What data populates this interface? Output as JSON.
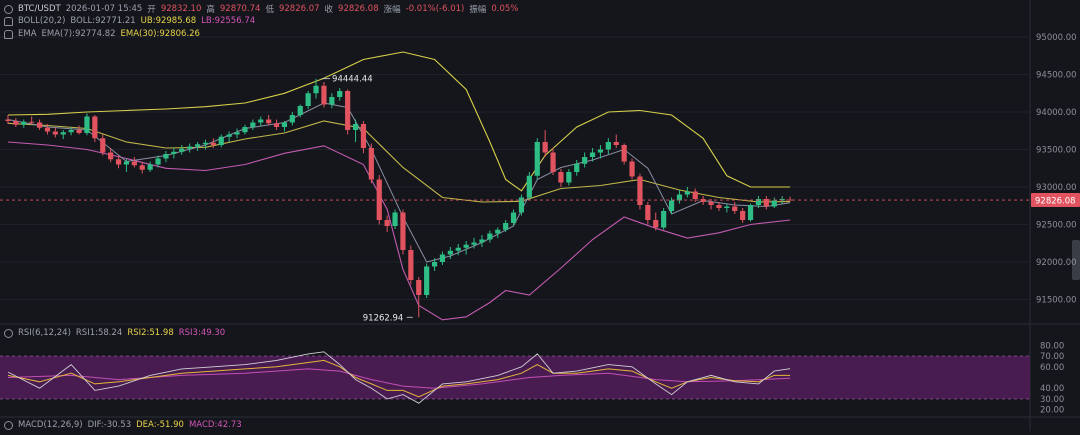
{
  "header": {
    "symbol": "BTC/USDT",
    "datetime": "2026-01-07 15:45",
    "open_label": "开",
    "open_value": "92832.10",
    "high_label": "高",
    "high_value": "92870.74",
    "low_label": "低",
    "low_value": "92826.07",
    "close_label": "收",
    "close_value": "92826.08",
    "change_label": "涨幅",
    "change_value": "-0.01%(-6.01)",
    "amplitude_label": "振幅",
    "amplitude_value": "0.05%"
  },
  "boll_legend": {
    "name": "BOLL(20,2)",
    "mid": "BOLL:92771.21",
    "ub": "UB:92985.68",
    "lb": "LB:92556.74"
  },
  "ema_legend": {
    "name": "EMA",
    "ema7": "EMA(7):92774.82",
    "ema30": "EMA(30):92806.26"
  },
  "rsi_legend": {
    "name": "RSI(6,12,24)",
    "rsi1": "RSI1:58.24",
    "rsi2": "RSI2:51.98",
    "rsi3": "RSI3:49.30"
  },
  "macd_legend": {
    "name": "MACD(12,26,9)",
    "dif": "DIF:-30.53",
    "dea": "DEA:-51.90",
    "macd": "MACD:42.73"
  },
  "annotations": {
    "high_label": "94444.44",
    "low_label": "91262.94"
  },
  "price_axis": {
    "ticks": [
      "95000.00",
      "94500.00",
      "94000.00",
      "93500.00",
      "93000.00",
      "92500.00",
      "92000.00",
      "91500.00"
    ],
    "current_price": "92826.08"
  },
  "rsi_axis": {
    "ticks": [
      "80.00",
      "70.00",
      "60.00",
      "40.00",
      "30.00",
      "20.00"
    ]
  },
  "colors": {
    "up": "#2ebd85",
    "down": "#e0535f",
    "ub": "#d6cf4a",
    "lb": "#c35bb0",
    "ema7": "#8a8fa3",
    "ema30": "#c2b84a",
    "rsi1": "#d0d0d6",
    "rsi2": "#e3b53a",
    "rsi3": "#c24fb5",
    "rsi_band": "#5b1f63"
  },
  "chart_data": {
    "type": "candlestick",
    "price_ylim": [
      91200,
      95200
    ],
    "rsi_ylim": [
      15,
      85
    ],
    "n_candles": 100,
    "high_point": {
      "index": 39,
      "value": 94444.44
    },
    "low_point": {
      "index": 52,
      "value": 91262.94
    },
    "candles": [
      [
        93900,
        93960,
        93840,
        93880
      ],
      [
        93880,
        93920,
        93800,
        93830
      ],
      [
        93830,
        93900,
        93790,
        93870
      ],
      [
        93870,
        93940,
        93830,
        93860
      ],
      [
        93860,
        93900,
        93760,
        93790
      ],
      [
        93790,
        93840,
        93700,
        93740
      ],
      [
        93740,
        93790,
        93660,
        93700
      ],
      [
        93700,
        93760,
        93640,
        93730
      ],
      [
        93730,
        93800,
        93690,
        93760
      ],
      [
        93760,
        93820,
        93700,
        93720
      ],
      [
        93720,
        93980,
        93690,
        93940
      ],
      [
        93940,
        93960,
        93600,
        93650
      ],
      [
        93650,
        93700,
        93420,
        93460
      ],
      [
        93460,
        93520,
        93330,
        93370
      ],
      [
        93370,
        93420,
        93250,
        93300
      ],
      [
        93300,
        93380,
        93200,
        93340
      ],
      [
        93340,
        93400,
        93260,
        93290
      ],
      [
        93290,
        93330,
        93180,
        93230
      ],
      [
        93230,
        93340,
        93200,
        93300
      ],
      [
        93300,
        93420,
        93260,
        93380
      ],
      [
        93380,
        93480,
        93330,
        93440
      ],
      [
        93440,
        93520,
        93380,
        93470
      ],
      [
        93470,
        93560,
        93430,
        93510
      ],
      [
        93510,
        93580,
        93460,
        93540
      ],
      [
        93540,
        93600,
        93480,
        93570
      ],
      [
        93570,
        93630,
        93500,
        93590
      ],
      [
        93590,
        93650,
        93520,
        93560
      ],
      [
        93560,
        93700,
        93530,
        93670
      ],
      [
        93670,
        93740,
        93600,
        93700
      ],
      [
        93700,
        93780,
        93650,
        93730
      ],
      [
        93730,
        93830,
        93700,
        93800
      ],
      [
        93800,
        93900,
        93760,
        93860
      ],
      [
        93860,
        93940,
        93810,
        93900
      ],
      [
        93900,
        93960,
        93820,
        93850
      ],
      [
        93850,
        93900,
        93760,
        93800
      ],
      [
        93800,
        93880,
        93740,
        93860
      ],
      [
        93860,
        94000,
        93820,
        93960
      ],
      [
        93960,
        94100,
        93930,
        94080
      ],
      [
        94080,
        94280,
        94040,
        94250
      ],
      [
        94250,
        94444,
        94180,
        94350
      ],
      [
        94350,
        94400,
        94060,
        94100
      ],
      [
        94100,
        94250,
        94050,
        94200
      ],
      [
        94200,
        94320,
        94150,
        94280
      ],
      [
        94280,
        94300,
        93700,
        93760
      ],
      [
        93760,
        93900,
        93600,
        93840
      ],
      [
        93840,
        93880,
        93450,
        93520
      ],
      [
        93520,
        93580,
        93050,
        93100
      ],
      [
        93100,
        93160,
        92500,
        92560
      ],
      [
        92560,
        92620,
        92400,
        92480
      ],
      [
        92480,
        92700,
        92440,
        92660
      ],
      [
        92660,
        92700,
        92100,
        92160
      ],
      [
        92160,
        92220,
        91700,
        91760
      ],
      [
        91760,
        91800,
        91262.94,
        91560
      ],
      [
        91560,
        91980,
        91520,
        91940
      ],
      [
        91940,
        92050,
        91880,
        92000
      ],
      [
        92000,
        92140,
        91960,
        92100
      ],
      [
        92100,
        92200,
        92040,
        92150
      ],
      [
        92150,
        92240,
        92090,
        92190
      ],
      [
        92190,
        92280,
        92100,
        92230
      ],
      [
        92230,
        92320,
        92180,
        92260
      ],
      [
        92260,
        92360,
        92200,
        92300
      ],
      [
        92300,
        92420,
        92260,
        92380
      ],
      [
        92380,
        92460,
        92320,
        92430
      ],
      [
        92430,
        92560,
        92400,
        92520
      ],
      [
        92520,
        92700,
        92480,
        92660
      ],
      [
        92660,
        92900,
        92620,
        92860
      ],
      [
        92860,
        93200,
        92820,
        93150
      ],
      [
        93150,
        93650,
        93100,
        93600
      ],
      [
        93600,
        93760,
        93400,
        93460
      ],
      [
        93460,
        93520,
        93160,
        93200
      ],
      [
        93200,
        93240,
        93000,
        93060
      ],
      [
        93060,
        93240,
        93020,
        93200
      ],
      [
        93200,
        93360,
        93150,
        93310
      ],
      [
        93310,
        93460,
        93260,
        93400
      ],
      [
        93400,
        93520,
        93340,
        93460
      ],
      [
        93460,
        93560,
        93380,
        93500
      ],
      [
        93500,
        93650,
        93440,
        93600
      ],
      [
        93600,
        93700,
        93520,
        93560
      ],
      [
        93560,
        93580,
        93300,
        93340
      ],
      [
        93340,
        93380,
        93100,
        93140
      ],
      [
        93140,
        93180,
        92700,
        92760
      ],
      [
        92760,
        92800,
        92500,
        92560
      ],
      [
        92560,
        92660,
        92420,
        92460
      ],
      [
        92460,
        92720,
        92430,
        92680
      ],
      [
        92680,
        92860,
        92640,
        92820
      ],
      [
        92820,
        92960,
        92780,
        92900
      ],
      [
        92900,
        93000,
        92860,
        92940
      ],
      [
        92940,
        92980,
        92800,
        92840
      ],
      [
        92840,
        92880,
        92760,
        92800
      ],
      [
        92800,
        92840,
        92700,
        92760
      ],
      [
        92760,
        92800,
        92680,
        92720
      ],
      [
        92720,
        92780,
        92660,
        92740
      ],
      [
        92740,
        92800,
        92640,
        92680
      ],
      [
        92680,
        92720,
        92520,
        92560
      ],
      [
        92560,
        92780,
        92540,
        92760
      ],
      [
        92760,
        92880,
        92720,
        92840
      ],
      [
        92840,
        92880,
        92700,
        92740
      ],
      [
        92740,
        92860,
        92720,
        92820
      ],
      [
        92820,
        92880,
        92780,
        92840
      ],
      [
        92832.1,
        92870.74,
        92826.07,
        92826.08
      ]
    ],
    "upper_band": [
      [
        0,
        93960
      ],
      [
        5,
        93970
      ],
      [
        10,
        94000
      ],
      [
        15,
        94020
      ],
      [
        20,
        94040
      ],
      [
        25,
        94070
      ],
      [
        30,
        94120
      ],
      [
        35,
        94250
      ],
      [
        40,
        94450
      ],
      [
        45,
        94700
      ],
      [
        50,
        94800
      ],
      [
        54,
        94700
      ],
      [
        58,
        94300
      ],
      [
        61,
        93600
      ],
      [
        63,
        93100
      ],
      [
        65,
        92950
      ],
      [
        68,
        93420
      ],
      [
        72,
        93800
      ],
      [
        76,
        94000
      ],
      [
        80,
        94020
      ],
      [
        84,
        93960
      ],
      [
        88,
        93650
      ],
      [
        91,
        93150
      ],
      [
        94,
        93000
      ],
      [
        99,
        93000
      ]
    ],
    "lower_band": [
      [
        0,
        93600
      ],
      [
        5,
        93560
      ],
      [
        10,
        93500
      ],
      [
        15,
        93380
      ],
      [
        20,
        93250
      ],
      [
        25,
        93220
      ],
      [
        30,
        93300
      ],
      [
        35,
        93450
      ],
      [
        40,
        93550
      ],
      [
        45,
        93300
      ],
      [
        48,
        92700
      ],
      [
        50,
        91900
      ],
      [
        52,
        91420
      ],
      [
        55,
        91230
      ],
      [
        58,
        91270
      ],
      [
        61,
        91460
      ],
      [
        63,
        91620
      ],
      [
        66,
        91560
      ],
      [
        70,
        91920
      ],
      [
        74,
        92300
      ],
      [
        78,
        92600
      ],
      [
        82,
        92450
      ],
      [
        86,
        92320
      ],
      [
        90,
        92390
      ],
      [
        94,
        92500
      ],
      [
        99,
        92560
      ]
    ],
    "ema7": [
      [
        0,
        93900
      ],
      [
        5,
        93800
      ],
      [
        10,
        93760
      ],
      [
        15,
        93340
      ],
      [
        20,
        93420
      ],
      [
        25,
        93560
      ],
      [
        30,
        93780
      ],
      [
        35,
        93860
      ],
      [
        40,
        94120
      ],
      [
        43,
        94060
      ],
      [
        46,
        93500
      ],
      [
        50,
        92600
      ],
      [
        53,
        92000
      ],
      [
        56,
        92080
      ],
      [
        60,
        92260
      ],
      [
        64,
        92480
      ],
      [
        67,
        93100
      ],
      [
        70,
        93260
      ],
      [
        74,
        93360
      ],
      [
        78,
        93500
      ],
      [
        81,
        93250
      ],
      [
        84,
        92640
      ],
      [
        88,
        92820
      ],
      [
        92,
        92760
      ],
      [
        96,
        92740
      ],
      [
        99,
        92790
      ]
    ],
    "ema30": [
      [
        0,
        93850
      ],
      [
        5,
        93820
      ],
      [
        10,
        93780
      ],
      [
        15,
        93600
      ],
      [
        20,
        93520
      ],
      [
        25,
        93530
      ],
      [
        30,
        93640
      ],
      [
        35,
        93720
      ],
      [
        40,
        93880
      ],
      [
        45,
        93780
      ],
      [
        50,
        93260
      ],
      [
        55,
        92860
      ],
      [
        60,
        92800
      ],
      [
        65,
        92810
      ],
      [
        70,
        92980
      ],
      [
        75,
        93020
      ],
      [
        80,
        93100
      ],
      [
        85,
        92960
      ],
      [
        90,
        92860
      ],
      [
        95,
        92800
      ],
      [
        99,
        92806
      ]
    ],
    "rsi1": [
      [
        0,
        55
      ],
      [
        4,
        40
      ],
      [
        8,
        62
      ],
      [
        11,
        38
      ],
      [
        14,
        42
      ],
      [
        18,
        52
      ],
      [
        22,
        58
      ],
      [
        26,
        60
      ],
      [
        30,
        62
      ],
      [
        34,
        66
      ],
      [
        38,
        72
      ],
      [
        40,
        74
      ],
      [
        42,
        62
      ],
      [
        44,
        48
      ],
      [
        46,
        40
      ],
      [
        48,
        30
      ],
      [
        50,
        34
      ],
      [
        52,
        26
      ],
      [
        55,
        44
      ],
      [
        58,
        46
      ],
      [
        62,
        52
      ],
      [
        65,
        60
      ],
      [
        67,
        72
      ],
      [
        69,
        54
      ],
      [
        72,
        56
      ],
      [
        76,
        62
      ],
      [
        79,
        60
      ],
      [
        82,
        44
      ],
      [
        84,
        34
      ],
      [
        86,
        46
      ],
      [
        89,
        52
      ],
      [
        92,
        46
      ],
      [
        95,
        44
      ],
      [
        97,
        56
      ],
      [
        99,
        58.24
      ]
    ],
    "rsi2": [
      [
        0,
        52
      ],
      [
        4,
        46
      ],
      [
        8,
        54
      ],
      [
        11,
        44
      ],
      [
        14,
        46
      ],
      [
        18,
        50
      ],
      [
        22,
        54
      ],
      [
        26,
        56
      ],
      [
        30,
        58
      ],
      [
        34,
        60
      ],
      [
        38,
        64
      ],
      [
        40,
        66
      ],
      [
        42,
        60
      ],
      [
        44,
        50
      ],
      [
        46,
        44
      ],
      [
        48,
        38
      ],
      [
        50,
        38
      ],
      [
        52,
        32
      ],
      [
        55,
        42
      ],
      [
        58,
        44
      ],
      [
        62,
        48
      ],
      [
        65,
        54
      ],
      [
        67,
        62
      ],
      [
        69,
        54
      ],
      [
        72,
        54
      ],
      [
        76,
        58
      ],
      [
        79,
        56
      ],
      [
        82,
        46
      ],
      [
        84,
        40
      ],
      [
        86,
        46
      ],
      [
        89,
        50
      ],
      [
        92,
        47
      ],
      [
        95,
        46
      ],
      [
        97,
        52
      ],
      [
        99,
        51.98
      ]
    ],
    "rsi3": [
      [
        0,
        50
      ],
      [
        8,
        52
      ],
      [
        14,
        48
      ],
      [
        22,
        52
      ],
      [
        30,
        54
      ],
      [
        38,
        58
      ],
      [
        42,
        56
      ],
      [
        46,
        48
      ],
      [
        50,
        42
      ],
      [
        54,
        40
      ],
      [
        60,
        44
      ],
      [
        66,
        50
      ],
      [
        70,
        52
      ],
      [
        76,
        54
      ],
      [
        82,
        48
      ],
      [
        86,
        46
      ],
      [
        92,
        47
      ],
      [
        99,
        49.3
      ]
    ]
  }
}
